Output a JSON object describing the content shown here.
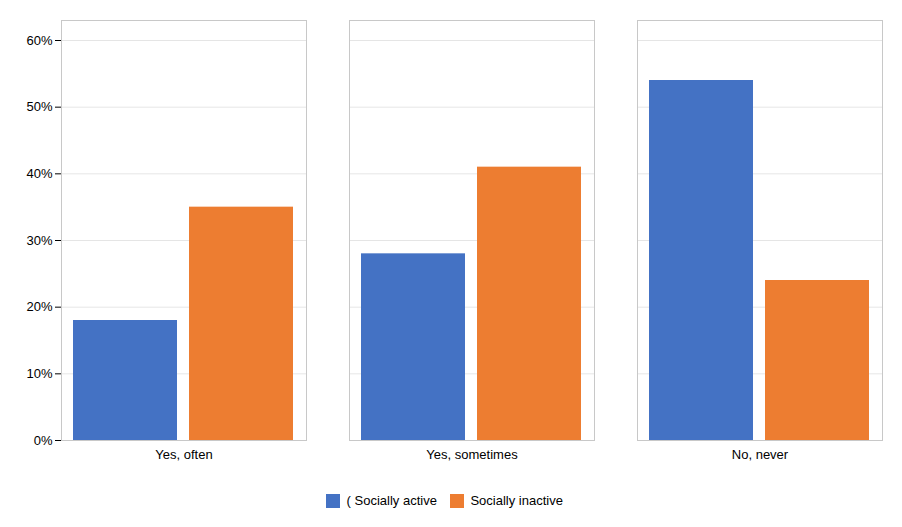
{
  "chart_data": {
    "type": "bar",
    "categories": [
      "Yes, often",
      "Yes, sometimes",
      "No, never"
    ],
    "series": [
      {
        "name": "( Socially active",
        "color": "#4472C4",
        "values": [
          0.18,
          0.28,
          0.54
        ]
      },
      {
        "name": "Socially inactive",
        "color": "#ED7D31",
        "values": [
          0.35,
          0.41,
          0.24
        ]
      }
    ],
    "ylim": [
      0,
      0.63
    ],
    "yticks": [
      {
        "value": 0.0,
        "label": "0%"
      },
      {
        "value": 0.1,
        "label": "10%"
      },
      {
        "value": 0.2,
        "label": "20%"
      },
      {
        "value": 0.3,
        "label": "30%"
      },
      {
        "value": 0.4,
        "label": "40%"
      },
      {
        "value": 0.5,
        "label": "50%"
      },
      {
        "value": 0.6,
        "label": "60%"
      }
    ],
    "grid": true,
    "legend": "bottom"
  }
}
